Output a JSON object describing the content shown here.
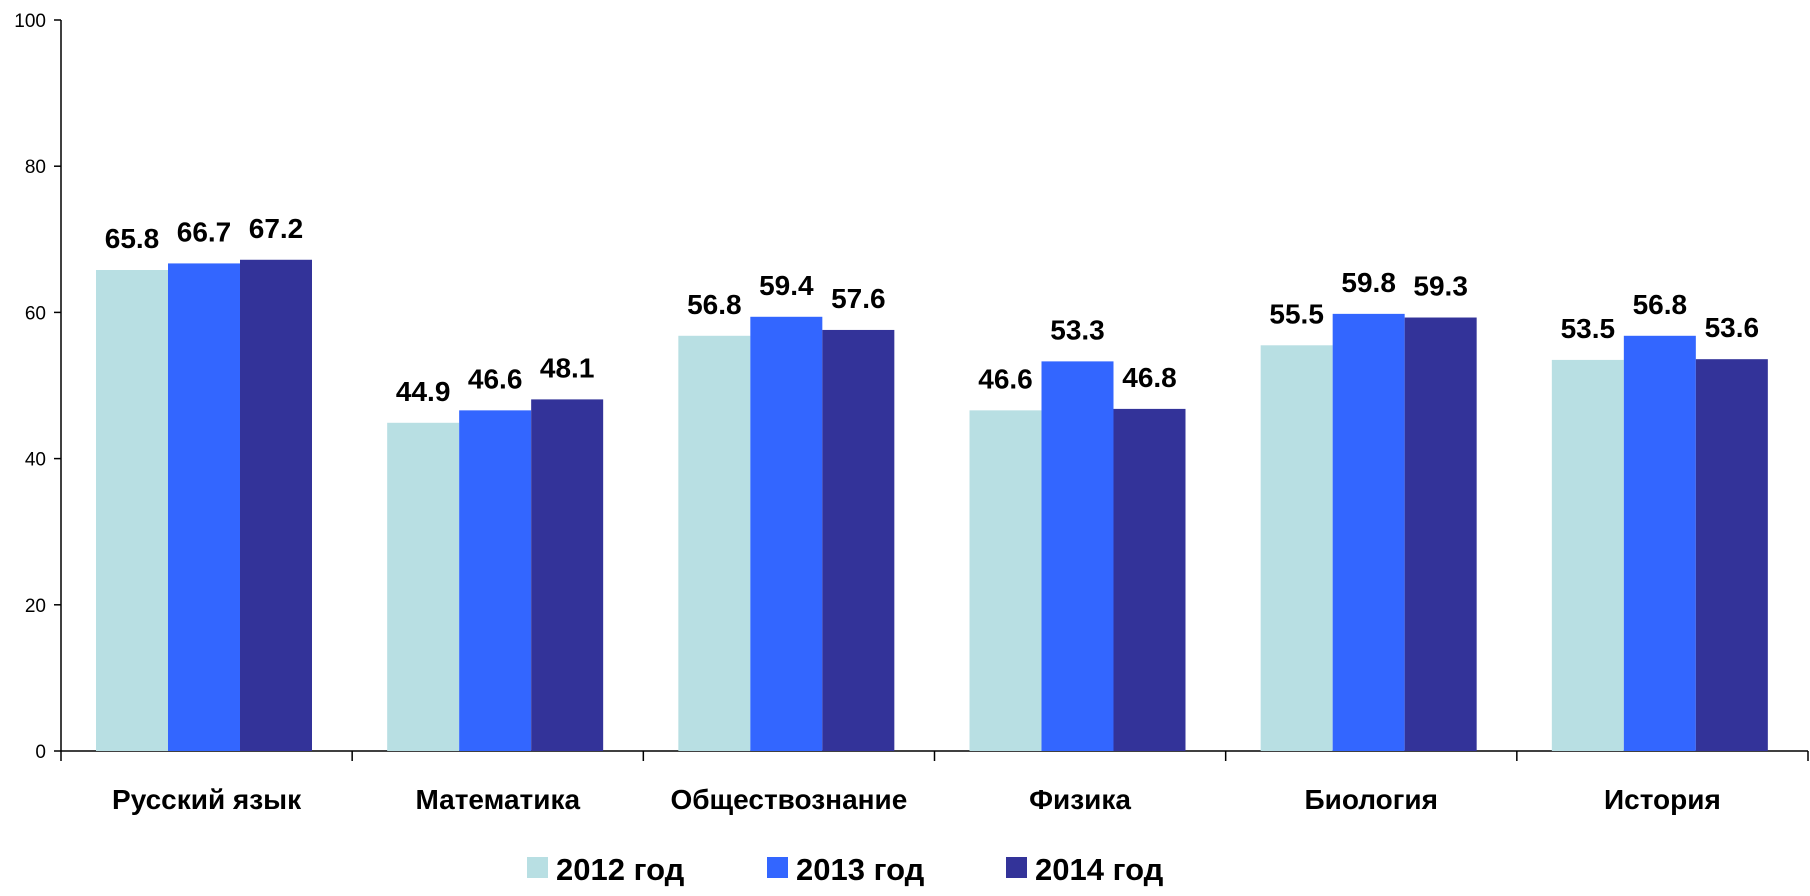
{
  "chart_data": {
    "type": "bar",
    "categories": [
      "Русский язык",
      "Математика",
      "Обществознание",
      "Физика",
      "Биология",
      "История"
    ],
    "series": [
      {
        "name": "2012 год",
        "color": "#B8DFE3",
        "values": [
          65.8,
          44.9,
          56.8,
          46.6,
          55.5,
          53.5
        ]
      },
      {
        "name": "2013 год",
        "color": "#3366FF",
        "values": [
          66.7,
          46.6,
          59.4,
          53.3,
          59.8,
          56.8
        ]
      },
      {
        "name": "2014 год",
        "color": "#333399",
        "values": [
          67.2,
          48.1,
          57.6,
          46.8,
          59.3,
          53.6
        ]
      }
    ],
    "ylim": [
      0,
      100
    ],
    "yticks": [
      0,
      20,
      40,
      60,
      80,
      100
    ],
    "grid": false,
    "legend_position": "bottom-center",
    "data_labels": true
  }
}
